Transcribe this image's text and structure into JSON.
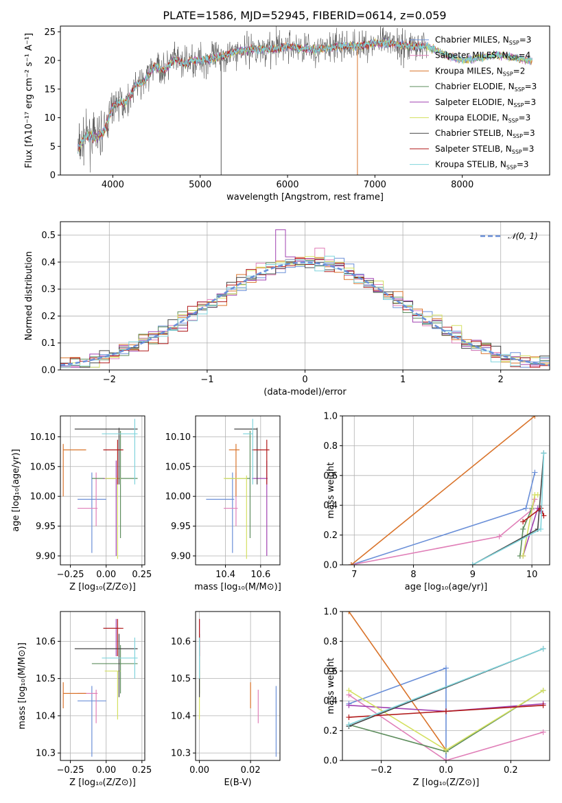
{
  "colors": {
    "Chabrier MILES": "#6a8fd8",
    "Salpeter MILES": "#e07fb8",
    "Kroupa MILES": "#d9732a",
    "Chabrier ELODIE": "#5c8c5c",
    "Salpeter ELODIE": "#a040b0",
    "Kroupa ELODIE": "#d4e060",
    "Chabrier STELIB": "#444444",
    "Salpeter STELIB": "#b01818",
    "Kroupa STELIB": "#7fd4dc",
    "normal": "#6a8fd8"
  },
  "chart_data": [
    {
      "id": "spectrum",
      "type": "line",
      "title": "PLATE=1586, MJD=52945, FIBERID=0614, z=0.059",
      "xlabel": "wavelength [Angstrom, rest frame]",
      "ylabel": "Flux [fλ10⁻¹⁷ erg cm⁻² s⁻¹ A⁻¹]",
      "xlim": [
        3400,
        9000
      ],
      "ylim": [
        0,
        26
      ],
      "xticks": [
        "4000",
        "5000",
        "6000",
        "7000",
        "8000"
      ],
      "yticks": [
        "0",
        "5",
        "10",
        "15",
        "20",
        "25"
      ],
      "legend_position": "right",
      "series": [
        {
          "name": "Chabrier MILES, N_SSP=3",
          "legend": [
            "Chabrier MILES, N",
            "SSP",
            "=3"
          ]
        },
        {
          "name": "Salpeter MILES, N_SSP=4",
          "legend": [
            "Salpeter MILES, N",
            "SSP",
            "=4"
          ]
        },
        {
          "name": "Kroupa MILES, N_SSP=2",
          "legend": [
            "Kroupa MILES, N",
            "SSP",
            "=2"
          ]
        },
        {
          "name": "Chabrier ELODIE, N_SSP=3",
          "legend": [
            "Chabrier ELODIE, N",
            "SSP",
            "=3"
          ]
        },
        {
          "name": "Salpeter ELODIE, N_SSP=3",
          "legend": [
            "Salpeter ELODIE, N",
            "SSP",
            "=3"
          ]
        },
        {
          "name": "Kroupa ELODIE, N_SSP=3",
          "legend": [
            "Kroupa ELODIE, N",
            "SSP",
            "=3"
          ]
        },
        {
          "name": "Chabrier STELIB, N_SSP=3",
          "legend": [
            "Chabrier STELIB, N",
            "SSP",
            "=3"
          ]
        },
        {
          "name": "Salpeter STELIB, N_SSP=3",
          "legend": [
            "Salpeter STELIB, N",
            "SSP",
            "=3"
          ]
        },
        {
          "name": "Kroupa STELIB, N_SSP=3",
          "legend": [
            "Kroupa STELIB, N",
            "SSP",
            "=3"
          ]
        }
      ],
      "data_profile": {
        "wavelength": [
          3600,
          3700,
          3800,
          3900,
          4000,
          4100,
          4200,
          4300,
          4400,
          4500,
          4600,
          4800,
          5000,
          5200,
          5400,
          5600,
          5800,
          6000,
          6200,
          6400,
          6600,
          6800,
          7000,
          7200,
          7400,
          7600,
          7800,
          8000,
          8200,
          8400,
          8600,
          8800
        ],
        "flux": [
          4.5,
          7,
          6.5,
          7.5,
          12,
          13,
          13.5,
          16,
          17.5,
          18.5,
          19,
          20,
          20,
          20.5,
          21.5,
          22,
          22,
          22.5,
          22,
          22,
          22.5,
          22.5,
          23,
          23,
          22.5,
          22.5,
          21,
          20,
          20.5,
          21,
          20.5,
          20
        ]
      }
    },
    {
      "id": "residuals",
      "type": "line",
      "xlabel": "(data-model)/error",
      "ylabel": "Normed distribution",
      "xlim": [
        -2.5,
        2.5
      ],
      "ylim": [
        0,
        0.55
      ],
      "xticks": [
        "−2",
        "−1",
        "0",
        "1",
        "2"
      ],
      "yticks": [
        "0.0",
        "0.1",
        "0.2",
        "0.3",
        "0.4",
        "0.5"
      ],
      "legend_position": "top-right",
      "reference": {
        "name": "𝒩(0, 1)",
        "mu": 0,
        "sigma": 1
      }
    },
    {
      "id": "age_vs_Z",
      "type": "scatter",
      "xlabel": "Z [log₁₀(Z/Z⊙)]",
      "ylabel": "age  [log₁₀(age/yr)]",
      "xlim": [
        -0.32,
        0.27
      ],
      "ylim": [
        9.885,
        10.135
      ],
      "xticks": [
        "−0.25",
        "0.00",
        "0.25"
      ],
      "yticks": [
        "9.90",
        "9.95",
        "10.00",
        "10.05",
        "10.10"
      ]
    },
    {
      "id": "age_vs_mass",
      "type": "scatter",
      "xlabel": "mass [log₁₀(M/M⊙)]",
      "ylabel": "",
      "xlim": [
        10.23,
        10.71
      ],
      "ylim": [
        9.885,
        10.135
      ],
      "xticks": [
        "10.4",
        "10.6"
      ],
      "yticks": [
        "9.90",
        "9.95",
        "10.00",
        "10.05",
        "10.10"
      ]
    },
    {
      "id": "weight_vs_age",
      "type": "line",
      "xlabel": "age  [log₁₀(age/yr)]",
      "ylabel": "mass weight",
      "xlim": [
        6.8,
        10.3
      ],
      "ylim": [
        0,
        1.0
      ],
      "xticks": [
        "7",
        "8",
        "9",
        "10"
      ],
      "yticks": [
        "0.0",
        "0.2",
        "0.4",
        "0.6",
        "0.8",
        "1.0"
      ]
    },
    {
      "id": "mass_vs_Z",
      "type": "scatter",
      "xlabel": "Z [log₁₀(Z/Z⊙)]",
      "ylabel": "mass [log₁₀(M/M⊙)]",
      "xlim": [
        -0.32,
        0.27
      ],
      "ylim": [
        10.28,
        10.68
      ],
      "xticks": [
        "−0.25",
        "0.00",
        "0.25"
      ],
      "yticks": [
        "10.3",
        "10.4",
        "10.5",
        "10.6"
      ]
    },
    {
      "id": "mass_vs_ebv",
      "type": "scatter",
      "xlabel": "E(B-V)",
      "ylabel": "",
      "xlim": [
        -0.0015,
        0.0315
      ],
      "ylim": [
        10.28,
        10.68
      ],
      "xticks": [
        "0.00",
        "0.02"
      ],
      "yticks": [
        "10.3",
        "10.4",
        "10.5",
        "10.6"
      ]
    },
    {
      "id": "weight_vs_Z",
      "type": "line",
      "xlabel": "Z [log₁₀(Z/Z⊙)]",
      "ylabel": "mass weight",
      "xlim": [
        -0.32,
        0.32
      ],
      "ylim": [
        0,
        1.0
      ],
      "xticks": [
        "−0.2",
        "0.0",
        "0.2"
      ],
      "yticks": [
        "0.0",
        "0.2",
        "0.4",
        "0.6",
        "0.8",
        "1.0"
      ]
    }
  ],
  "fits": [
    {
      "model": "Chabrier MILES",
      "Z": -0.1,
      "Z_lo": -0.2,
      "Z_hi": 0.0,
      "age": 9.995,
      "age_lo": 9.905,
      "age_hi": 10.04,
      "mass": 10.44,
      "mass_lo": 10.29,
      "mass_hi": 10.45,
      "m_lo": 10.29,
      "m_hi": 10.48,
      "ebv": 0.03,
      "ages": [
        6.95,
        9.9,
        10.05
      ],
      "weights": [
        0.0,
        0.38,
        0.62
      ],
      "Zs": [
        0.0,
        0.0,
        -0.3
      ],
      "wz": [
        0.0,
        0.62,
        0.38
      ]
    },
    {
      "model": "Salpeter MILES",
      "Z": -0.07,
      "Z_lo": -0.2,
      "Z_hi": -0.06,
      "age": 9.98,
      "age_lo": 9.95,
      "age_hi": 10.04,
      "mass": 10.46,
      "mass_lo": 10.39,
      "mass_hi": 10.47,
      "m_lo": 10.38,
      "m_hi": 10.47,
      "ebv": 0.023,
      "ages": [
        6.95,
        9.45,
        10.0,
        10.05
      ],
      "weights": [
        0.0,
        0.19,
        0.37,
        0.44
      ],
      "Zs": [
        -0.3,
        0.0,
        0.3
      ],
      "wz": [
        0.44,
        0.0,
        0.19
      ]
    },
    {
      "model": "Kroupa MILES",
      "Z": -0.3,
      "Z_lo": -0.3,
      "Z_hi": -0.14,
      "age": 10.078,
      "age_lo": 10.0,
      "age_hi": 10.088,
      "mass": 10.46,
      "mass_lo": 10.42,
      "mass_hi": 10.48,
      "m_lo": 10.42,
      "m_hi": 10.49,
      "ebv": 0.02,
      "ages": [
        6.95,
        10.05
      ],
      "weights": [
        0.0,
        1.0
      ],
      "Zs": [
        -0.3,
        0.0
      ],
      "wz": [
        1.0,
        0.07
      ]
    },
    {
      "model": "Chabrier ELODIE",
      "Z": 0.1,
      "Z_lo": -0.1,
      "Z_hi": 0.22,
      "age": 10.03,
      "age_lo": 9.93,
      "age_hi": 10.11,
      "mass": 10.54,
      "mass_lo": 10.4,
      "mass_hi": 10.54,
      "m_lo": 10.46,
      "m_hi": 10.59,
      "ebv": 0.0,
      "ages": [
        9.8,
        9.85,
        10.0
      ],
      "weights": [
        0.06,
        0.24,
        0.38
      ],
      "Zs": [
        -0.3,
        0.0,
        0.3
      ],
      "wz": [
        0.24,
        0.06,
        0.47
      ]
    },
    {
      "model": "Salpeter ELODIE",
      "Z": 0.07,
      "Z_lo": -0.02,
      "Z_hi": 0.1,
      "age": 10.03,
      "age_lo": 9.9,
      "age_hi": 10.06,
      "mass": 10.635,
      "mass_lo": 10.55,
      "mass_hi": 10.64,
      "m_lo": 10.56,
      "m_hi": 10.66,
      "ebv": 0.0,
      "ages": [
        9.85,
        10.1,
        10.15
      ],
      "weights": [
        0.06,
        0.38,
        0.36
      ],
      "Zs": [
        -0.3,
        0.0,
        0.3
      ],
      "wz": [
        0.37,
        0.33,
        0.38
      ]
    },
    {
      "model": "Kroupa ELODIE",
      "Z": 0.08,
      "Z_lo": -0.01,
      "Z_hi": 0.1,
      "age": 10.03,
      "age_lo": 9.895,
      "age_hi": 10.035,
      "mass": 10.52,
      "mass_lo": 10.39,
      "mass_hi": 10.52,
      "m_lo": 10.39,
      "m_hi": 10.52,
      "ebv": 0.0,
      "ages": [
        9.85,
        10.05,
        10.1
      ],
      "weights": [
        0.06,
        0.47,
        0.47
      ],
      "Zs": [
        -0.3,
        0.0,
        0.3
      ],
      "wz": [
        0.47,
        0.07,
        0.47
      ]
    },
    {
      "model": "Chabrier STELIB",
      "Z": 0.09,
      "Z_lo": -0.22,
      "Z_hi": 0.22,
      "age": 10.113,
      "age_lo": 10.02,
      "age_hi": 10.115,
      "mass": 10.58,
      "mass_lo": 10.45,
      "mass_hi": 10.58,
      "m_lo": 10.45,
      "m_hi": 10.62,
      "ebv": 0.0,
      "ages": [
        9.0,
        10.1,
        10.2
      ],
      "weights": [
        0.0,
        0.24,
        0.75
      ],
      "Zs": [
        -0.3,
        0.3
      ],
      "wz": [
        0.23,
        0.75
      ]
    },
    {
      "model": "Salpeter STELIB",
      "Z": 0.08,
      "Z_lo": -0.02,
      "Z_hi": 0.12,
      "age": 10.078,
      "age_lo": 10.02,
      "age_hi": 10.095,
      "mass": 10.635,
      "mass_lo": 10.55,
      "mass_hi": 10.65,
      "m_lo": 10.56,
      "m_hi": 10.66,
      "ebv": 0.0,
      "ages": [
        9.85,
        10.15,
        10.2
      ],
      "weights": [
        0.29,
        0.38,
        0.33
      ],
      "Zs": [
        -0.3,
        0.0,
        0.3
      ],
      "wz": [
        0.29,
        0.33,
        0.37
      ]
    },
    {
      "model": "Kroupa STELIB",
      "Z": 0.2,
      "Z_lo": -0.03,
      "Z_hi": 0.22,
      "age": 10.105,
      "age_lo": 10.02,
      "age_hi": 10.13,
      "mass": 10.555,
      "mass_lo": 10.5,
      "mass_hi": 10.555,
      "m_lo": 10.5,
      "m_hi": 10.61,
      "ebv": 0.0,
      "ages": [
        9.0,
        10.15,
        10.2
      ],
      "weights": [
        0.0,
        0.24,
        0.75
      ],
      "Zs": [
        -0.3,
        0.3
      ],
      "wz": [
        0.24,
        0.75
      ]
    }
  ]
}
